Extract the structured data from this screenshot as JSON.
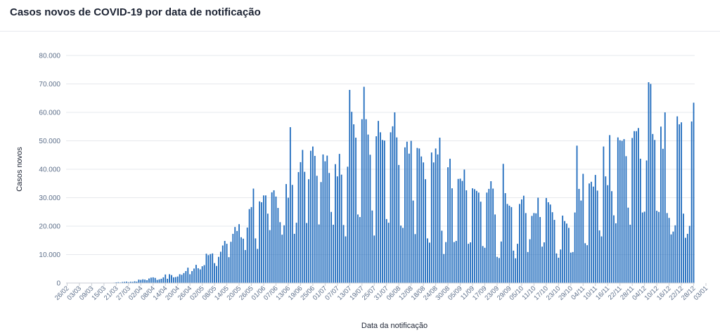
{
  "header": {
    "title": "Casos novos de COVID-19 por data de notificação"
  },
  "chart_data": {
    "type": "bar",
    "title": "Casos novos de COVID-19 por data de notificação",
    "xlabel": "Data da notificação",
    "ylabel": "Casos novos",
    "ylim": [
      0,
      80000
    ],
    "yticks": [
      0,
      10000,
      20000,
      30000,
      40000,
      50000,
      60000,
      70000,
      80000
    ],
    "ytick_labels": [
      "0",
      "10.000",
      "20.000",
      "30.000",
      "40.000",
      "50.000",
      "60.000",
      "70.000",
      "80.000"
    ],
    "xtick_labels": [
      "26/02",
      "03/03",
      "09/03",
      "15/03",
      "21/03",
      "27/03",
      "02/04",
      "08/04",
      "14/04",
      "20/04",
      "26/04",
      "02/05",
      "08/05",
      "14/05",
      "20/05",
      "26/05",
      "01/06",
      "07/06",
      "13/06",
      "19/06",
      "25/06",
      "01/07",
      "07/07",
      "13/07",
      "19/07",
      "25/07",
      "31/07",
      "06/08",
      "12/08",
      "18/08",
      "24/08",
      "30/08",
      "05/09",
      "11/09",
      "17/09",
      "23/09",
      "29/09",
      "05/10",
      "11/10",
      "17/10",
      "23/10",
      "29/10",
      "04/11",
      "10/11",
      "16/11",
      "22/11",
      "28/11",
      "04/12",
      "10/12",
      "16/12",
      "22/12",
      "28/12",
      "03/01"
    ],
    "grid": true,
    "color": "#1f6bbd",
    "start_date": "2020-02-26",
    "values": [
      0,
      0,
      0,
      0,
      0,
      0,
      0,
      0,
      0,
      0,
      0,
      0,
      0,
      0,
      0,
      0,
      0,
      0,
      0,
      0,
      0,
      0,
      100,
      150,
      250,
      300,
      200,
      350,
      400,
      500,
      300,
      450,
      400,
      600,
      500,
      1200,
      1100,
      1300,
      1200,
      1000,
      1600,
      1900,
      2000,
      1800,
      1100,
      1300,
      1500,
      2000,
      3000,
      1500,
      3100,
      2800,
      2000,
      2100,
      2300,
      3100,
      2900,
      3500,
      4200,
      5400,
      3100,
      4200,
      5100,
      6400,
      5200,
      4800,
      5900,
      6300,
      10300,
      9800,
      10200,
      10400,
      7000,
      6000,
      9200,
      11000,
      13200,
      14800,
      13800,
      9100,
      14500,
      17300,
      19700,
      18300,
      20700,
      16100,
      15600,
      11600,
      19500,
      26000,
      26700,
      33200,
      15700,
      12000,
      28700,
      28400,
      30800,
      30800,
      24400,
      18600,
      31900,
      32600,
      30400,
      26400,
      21400,
      17000,
      20300,
      34800,
      30000,
      54800,
      34500,
      17300,
      21200,
      39000,
      42500,
      46800,
      39100,
      21100,
      36500,
      46500,
      48000,
      44700,
      37700,
      20600,
      35500,
      45200,
      42800,
      44800,
      38700,
      25000,
      20500,
      41800,
      37500,
      45400,
      38100,
      20400,
      16400,
      40900,
      67900,
      60200,
      55800,
      51100,
      24100,
      23200,
      57600,
      69000,
      57600,
      52200,
      45100,
      25500,
      16700,
      51600,
      57000,
      53000,
      50300,
      50100,
      22500,
      21200,
      53000,
      55100,
      60000,
      51200,
      41500,
      20200,
      19400,
      47700,
      49700,
      45500,
      50000,
      29000,
      17200,
      47500,
      47300,
      44500,
      42400,
      36500,
      15700,
      14200,
      45900,
      42400,
      47300,
      45200,
      51100,
      18400,
      10200,
      14400,
      40700,
      43700,
      33300,
      14400,
      14800,
      36600,
      36700,
      35900,
      39900,
      32600,
      13800,
      14300,
      33300,
      33000,
      32400,
      31800,
      28600,
      13000,
      12400,
      31800,
      33100,
      35800,
      33200,
      24100,
      9200,
      8800,
      14600,
      41900,
      31600,
      27800,
      27200,
      26700,
      11400,
      8700,
      13800,
      27800,
      29400,
      30700,
      24600,
      10900,
      15400,
      23600,
      24600,
      24500,
      30000,
      23200,
      12800,
      14300,
      29900,
      28400,
      27600,
      24900,
      22200,
      10400,
      8900,
      11800,
      23700,
      21800,
      20900,
      19400,
      10700,
      10900,
      24800,
      48300,
      33100,
      29000,
      38400,
      14000,
      13300,
      35000,
      35600,
      33900,
      38000,
      32500,
      18500,
      16400,
      48000,
      37500,
      34400,
      52000,
      32300,
      23800,
      21000,
      51200,
      50200,
      50000,
      50600,
      44600,
      26500,
      20500,
      51000,
      53400,
      53400,
      54500,
      43700,
      24800,
      25100,
      43100,
      70600,
      70000,
      52400,
      50300,
      25400,
      25000,
      55000,
      47200,
      60000,
      24600,
      22900,
      17100,
      18100,
      20300,
      58600,
      55800,
      56500,
      24400,
      15900,
      17300,
      20100,
      56800,
      63400
    ]
  }
}
